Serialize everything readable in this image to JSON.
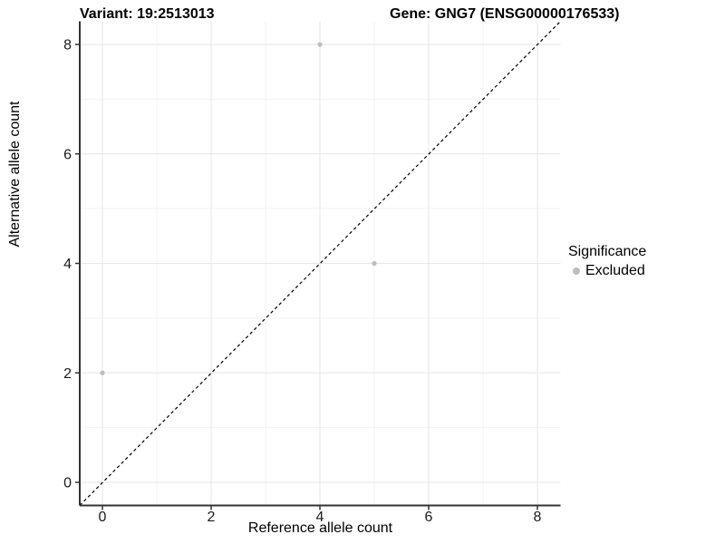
{
  "chart_data": {
    "type": "scatter",
    "title_left": "Variant: 19:2513013",
    "title_right": "Gene: GNG7 (ENSG00000176533)",
    "xlabel": "Reference allele count",
    "ylabel": "Alternative allele count",
    "xlim": [
      -0.425,
      8.425
    ],
    "ylim": [
      -0.425,
      8.425
    ],
    "x_ticks": [
      0,
      2,
      4,
      6,
      8
    ],
    "y_ticks": [
      0,
      2,
      4,
      6,
      8
    ],
    "grid": "major and minor gridlines on, white background",
    "reference_line": {
      "type": "identity y=x",
      "style": "dashed",
      "color": "#000000"
    },
    "series": [
      {
        "name": "Excluded",
        "color": "#bebebe",
        "points": [
          {
            "x": 0,
            "y": 2
          },
          {
            "x": 4,
            "y": 8
          },
          {
            "x": 5,
            "y": 4
          }
        ]
      }
    ],
    "legend": {
      "title": "Significance",
      "position": "right",
      "items": [
        {
          "label": "Excluded",
          "color": "#bebebe"
        }
      ]
    }
  },
  "style": {
    "axis_line_color": "#333333",
    "tick_label_color": "#1a1a1a",
    "major_grid_color": "#e6e6e6",
    "minor_grid_color": "#f3f3f3"
  }
}
